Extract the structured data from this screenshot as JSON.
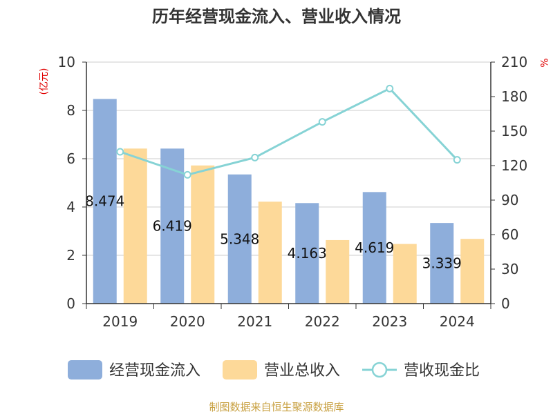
{
  "chart_data": {
    "type": "bar",
    "title": "历年经营现金流入、营业收入情况",
    "categories": [
      "2019",
      "2020",
      "2021",
      "2022",
      "2023",
      "2024"
    ],
    "series": [
      {
        "name": "经营现金流入",
        "axis": "left",
        "kind": "bar",
        "color": "#8eaedb",
        "values": [
          8.474,
          6.419,
          5.348,
          4.163,
          4.619,
          3.339
        ],
        "labels_shown": true
      },
      {
        "name": "营业总收入",
        "axis": "left",
        "kind": "bar",
        "color": "#fdd999",
        "values": [
          6.42,
          5.72,
          4.22,
          2.63,
          2.47,
          2.68
        ],
        "labels_shown": false
      },
      {
        "name": "营收现金比",
        "axis": "right",
        "kind": "line",
        "color": "#86d3d5",
        "values": [
          132,
          112,
          127,
          158,
          187,
          125
        ],
        "labels_shown": false
      }
    ],
    "ylabel_left": "(亿元)",
    "ylabel_right": "%",
    "ylim_left": [
      0,
      10
    ],
    "ylim_right": [
      0,
      210
    ],
    "yticks_left": [
      "0",
      "2",
      "4",
      "6",
      "8",
      "10"
    ],
    "yticks_right": [
      "0",
      "30",
      "60",
      "90",
      "120",
      "150",
      "180",
      "210"
    ],
    "grid": true,
    "legend_position": "bottom"
  },
  "source": "制图数据来自恒生聚源数据库"
}
